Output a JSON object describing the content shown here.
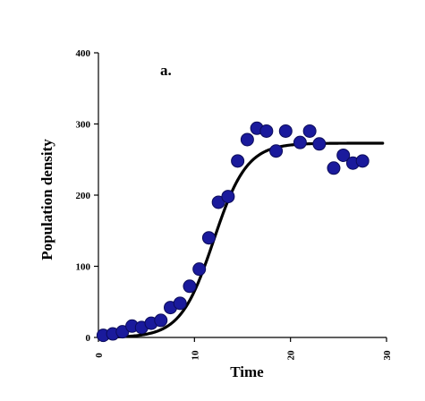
{
  "chart_data": {
    "type": "scatter",
    "title": "",
    "panel_label": "a.",
    "xlabel": "Time",
    "ylabel": "Population density",
    "xlim": [
      0,
      30
    ],
    "ylim": [
      0,
      400
    ],
    "x_ticks": [
      0,
      10,
      20,
      30
    ],
    "x_tick_labels": [
      "0",
      "10",
      "20",
      "30"
    ],
    "y_ticks": [
      0,
      100,
      200,
      300,
      400
    ],
    "y_tick_labels": [
      "0",
      "100",
      "200",
      "300",
      "400"
    ],
    "grid": false,
    "legend": "none",
    "point_color": "#1a1a9c",
    "point_edge_color": "#0c0c5a",
    "curve_color": "#000000",
    "series": [
      {
        "type": "scatter",
        "x": [
          0.5,
          1.5,
          2.5,
          3.5,
          4.5,
          5.5,
          6.5,
          7.5,
          8.5,
          9.5,
          10.5,
          11.5,
          12.5,
          13.5,
          14.5,
          15.5,
          16.5,
          17.5,
          18.5,
          19.5,
          21,
          22,
          23,
          24.5,
          25.5,
          26.5,
          27.5
        ],
        "y": [
          3,
          5,
          8,
          16,
          14,
          20,
          24,
          42,
          48,
          72,
          96,
          140,
          190,
          198,
          248,
          278,
          294,
          290,
          262,
          290,
          274,
          290,
          272,
          238,
          256,
          245,
          248
        ]
      },
      {
        "type": "line",
        "model": "logistic",
        "K": 273,
        "r": 0.58,
        "t0": 12
      }
    ]
  }
}
